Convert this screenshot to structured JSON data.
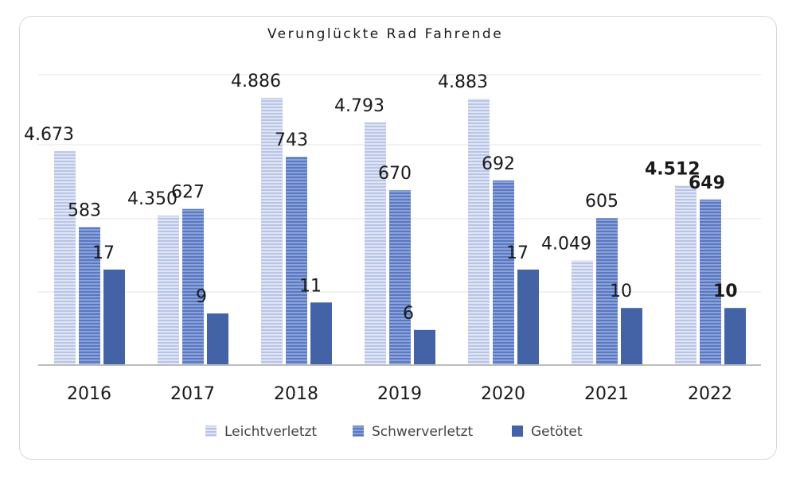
{
  "chart_data": {
    "type": "bar",
    "title": "Verunglückte Rad Fahrende",
    "categories": [
      "2016",
      "2017",
      "2018",
      "2019",
      "2020",
      "2021",
      "2022"
    ],
    "series": [
      {
        "name": "Leichtverletzt",
        "values": [
          4673,
          4350,
          4886,
          4793,
          4883,
          4049,
          4512
        ],
        "labels": [
          "4.673",
          "4.350",
          "4.886",
          "4.793",
          "4.883",
          "4.049",
          "4.512"
        ],
        "color": "#c9d2ec"
      },
      {
        "name": "Schwerverletzt",
        "values": [
          583,
          627,
          743,
          670,
          692,
          605,
          649
        ],
        "labels": [
          "583",
          "627",
          "743",
          "670",
          "692",
          "605",
          "649"
        ],
        "color": "#6f8cce"
      },
      {
        "name": "Getötet",
        "values": [
          17,
          9,
          11,
          6,
          17,
          10,
          10
        ],
        "labels": [
          "17",
          "9",
          "11",
          "6",
          "17",
          "10",
          "10"
        ],
        "color": "#4463a7"
      }
    ],
    "bold_category": "2022",
    "grid": true,
    "legend_position": "bottom"
  }
}
